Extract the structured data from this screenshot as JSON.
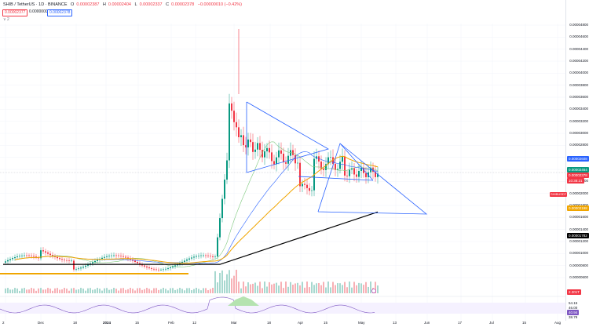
{
  "header": {
    "symbol": "SHIB / TetherUS · 1D · BINANCE",
    "ohlc": {
      "open_label": "O",
      "open": "0.00002387",
      "high_label": "H",
      "high": "0.00002404",
      "low_label": "L",
      "low": "0.00002337",
      "close_label": "C",
      "close": "0.00002378",
      "change": "−0.00000010 (−0.42%)"
    },
    "collapse_glyph": "∧  2",
    "sell_price": "0.00002377",
    "spread": "0.00000001",
    "buy_price": "0.00002378",
    "indicators_glyph": "∨  2"
  },
  "price_scale": {
    "labels": [
      "0.00004800",
      "0.00004600",
      "0.00004400",
      "0.00004200",
      "0.00004000",
      "0.00003800",
      "0.00003600",
      "0.00003400",
      "0.00003200",
      "0.00003000",
      "0.00002800",
      "0.00002600",
      "0.00002400",
      "0.00002200",
      "0.00002000",
      "0.00001800",
      "0.00001600",
      "0.00001400",
      "0.00001200",
      "0.00001000",
      "0.00000800",
      "0.00000600"
    ],
    "tags": {
      "blue_line": "0.00002608",
      "green_line": "0.00002464",
      "current_price": "0.00002378",
      "countdown": "10:38:21",
      "ema_orange": "0.00002198",
      "ema_black": "0.00001782",
      "volume": "2.301T"
    },
    "left_tag": "SHIBUSDT",
    "rsi_labels": [
      "54.15",
      "46.00",
      "40.94",
      "38.79"
    ]
  },
  "time_axis": [
    {
      "label": "2",
      "bold": false
    },
    {
      "label": "Dec",
      "bold": false
    },
    {
      "label": "18",
      "bold": false
    },
    {
      "label": "2024",
      "bold": true
    },
    {
      "label": "15",
      "bold": false
    },
    {
      "label": "Feb",
      "bold": false
    },
    {
      "label": "12",
      "bold": false
    },
    {
      "label": "Mar",
      "bold": false
    },
    {
      "label": "18",
      "bold": false
    },
    {
      "label": "Apr",
      "bold": false
    },
    {
      "label": "15",
      "bold": false
    },
    {
      "label": "May",
      "bold": false
    },
    {
      "label": "13",
      "bold": false
    },
    {
      "label": "Jun",
      "bold": false
    },
    {
      "label": "17",
      "bold": false
    },
    {
      "label": "Jul",
      "bold": false
    },
    {
      "label": "15",
      "bold": false
    },
    {
      "label": "Aug",
      "bold": false
    }
  ],
  "colors": {
    "up": "#089981",
    "down": "#f23645",
    "trendline": "#2962ff",
    "ema_orange": "#f0a500",
    "ema_black": "#000000",
    "ema_light_green": "#7fc97f",
    "rsi_line": "#7e57c2"
  }
}
